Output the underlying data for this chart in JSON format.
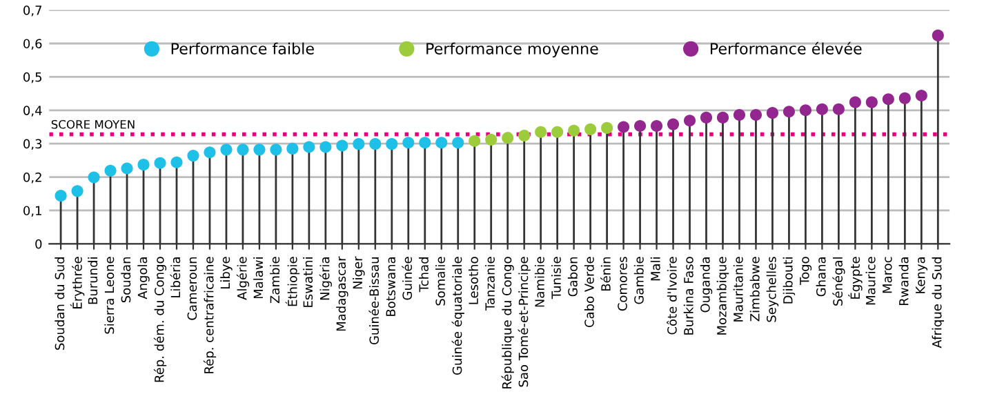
{
  "chart_data": {
    "type": "lollipop",
    "categories": [
      "Soudan du Sud",
      "Érythrée",
      "Burundi",
      "Sierra Leone",
      "Soudan",
      "Angola",
      "Rép. dém. du Congo",
      "Libéria",
      "Cameroun",
      "Rép. centrafricaine",
      "Libye",
      "Algérie",
      "Malawi",
      "Zambie",
      "Éthiopie",
      "Eswatini",
      "Nigéria",
      "Madagascar",
      "Niger",
      "Guinée-Bissau",
      "Botswana",
      "Guinée",
      "Tchad",
      "Somalie",
      "Guinée équatoriale",
      "Lesotho",
      "Tanzanie",
      "République du Congo",
      "Sao Tomé-et-Principe",
      "Namibie",
      "Tunisie",
      "Gabon",
      "Cabo Verde",
      "Bénin",
      "Comores",
      "Gambie",
      "Mali",
      "Côte d'Ivoire",
      "Burkina Faso",
      "Ouganda",
      "Mozambique",
      "Mauritanie",
      "Zimbabwe",
      "Seychelles",
      "Djibouti",
      "Togo",
      "Ghana",
      "Sénégal",
      "Égypte",
      "Maurice",
      "Maroc",
      "Rwanda",
      "Kenya",
      "Afrique du Sud"
    ],
    "series": [
      {
        "name": "Performance faible",
        "color": "#1ec0e8",
        "values": [
          0.144,
          0.158,
          0.199,
          0.219,
          0.226,
          0.237,
          0.242,
          0.244,
          0.264,
          0.274,
          0.282,
          0.282,
          0.282,
          0.282,
          0.285,
          0.29,
          0.29,
          0.294,
          0.299,
          0.299,
          0.299,
          0.303,
          0.303,
          0.303,
          0.303,
          null,
          null,
          null,
          null,
          null,
          null,
          null,
          null,
          null,
          null,
          null,
          null,
          null,
          null,
          null,
          null,
          null,
          null,
          null,
          null,
          null,
          null,
          null,
          null,
          null,
          null,
          null,
          null,
          null
        ]
      },
      {
        "name": "Performance moyenne",
        "color": "#9ccc3c",
        "values": [
          null,
          null,
          null,
          null,
          null,
          null,
          null,
          null,
          null,
          null,
          null,
          null,
          null,
          null,
          null,
          null,
          null,
          null,
          null,
          null,
          null,
          null,
          null,
          null,
          null,
          0.308,
          0.312,
          0.317,
          0.324,
          0.335,
          0.335,
          0.339,
          0.343,
          0.347,
          null,
          null,
          null,
          null,
          null,
          null,
          null,
          null,
          null,
          null,
          null,
          null,
          null,
          null,
          null,
          null,
          null,
          null,
          null,
          null
        ]
      },
      {
        "name": "Performance élevée",
        "color": "#93278f",
        "values": [
          null,
          null,
          null,
          null,
          null,
          null,
          null,
          null,
          null,
          null,
          null,
          null,
          null,
          null,
          null,
          null,
          null,
          null,
          null,
          null,
          null,
          null,
          null,
          null,
          null,
          null,
          null,
          null,
          null,
          null,
          null,
          null,
          null,
          null,
          0.35,
          0.353,
          0.353,
          0.358,
          0.369,
          0.378,
          0.378,
          0.386,
          0.386,
          0.392,
          0.396,
          0.4,
          0.403,
          0.403,
          0.424,
          0.424,
          0.433,
          0.436,
          0.444,
          0.624
        ]
      }
    ],
    "ylim": [
      0,
      0.7
    ],
    "yticks": [
      {
        "value": 0,
        "label": "0"
      },
      {
        "value": 0.1,
        "label": "0,1"
      },
      {
        "value": 0.2,
        "label": "0,2"
      },
      {
        "value": 0.3,
        "label": "0,3"
      },
      {
        "value": 0.4,
        "label": "0,4"
      },
      {
        "value": 0.5,
        "label": "0,5"
      },
      {
        "value": 0.6,
        "label": "0,6"
      },
      {
        "value": 0.7,
        "label": "0,7"
      }
    ],
    "ref_lines": [
      {
        "axis": "y",
        "value": 0.328,
        "label": "SCORE MOYEN",
        "color": "#e6007e",
        "line_style": "dotted"
      }
    ],
    "grid": "y",
    "legend": "top",
    "marker": "circle"
  }
}
